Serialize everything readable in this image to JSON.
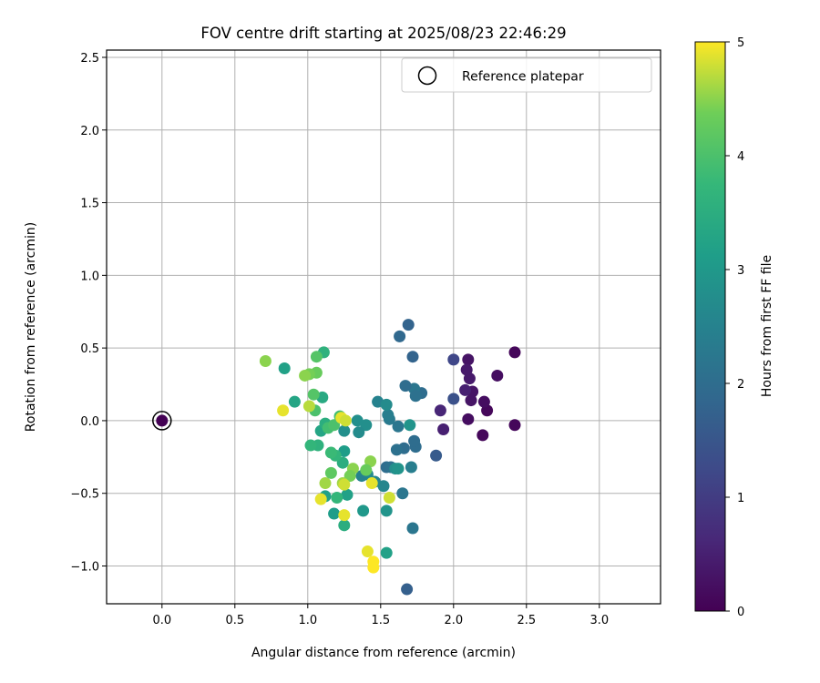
{
  "chart_data": {
    "type": "scatter",
    "title": "FOV centre drift starting at 2025/08/23 22:46:29",
    "xlabel": "Angular distance from reference (arcmin)",
    "ylabel": "Rotation from reference (arcmin)",
    "xlim": [
      -0.38,
      3.42
    ],
    "ylim": [
      -1.26,
      2.55
    ],
    "xticks": [
      0.0,
      0.5,
      1.0,
      1.5,
      2.0,
      2.5,
      3.0
    ],
    "xtick_labels": [
      "0.0",
      "0.5",
      "1.0",
      "1.5",
      "2.0",
      "2.5",
      "3.0"
    ],
    "yticks": [
      -1.0,
      -0.5,
      0.0,
      0.5,
      1.0,
      1.5,
      2.0,
      2.5
    ],
    "ytick_labels": [
      "−1.0",
      "−0.5",
      "0.0",
      "0.5",
      "1.0",
      "1.5",
      "2.0",
      "2.5"
    ],
    "grid": true,
    "legend_position": "top-right",
    "legend": [
      {
        "label": "Reference platepar",
        "marker": "open-circle"
      }
    ],
    "reference_point": {
      "x": 0.0,
      "y": 0.0,
      "hours": 0.0
    },
    "colorbar": {
      "label": "Hours from first FF file",
      "colormap": "viridis",
      "range": [
        0,
        5
      ],
      "ticks": [
        0,
        1,
        2,
        3,
        4,
        5
      ],
      "tick_labels": [
        "0",
        "1",
        "2",
        "3",
        "4",
        "5"
      ]
    },
    "points": [
      {
        "x": 2.42,
        "y": 0.47,
        "hours": 0.1
      },
      {
        "x": 2.42,
        "y": -0.03,
        "hours": 0.1
      },
      {
        "x": 2.3,
        "y": 0.31,
        "hours": 0.2
      },
      {
        "x": 2.23,
        "y": 0.07,
        "hours": 0.1
      },
      {
        "x": 2.21,
        "y": 0.13,
        "hours": 0.2
      },
      {
        "x": 2.2,
        "y": -0.1,
        "hours": 0.1
      },
      {
        "x": 2.13,
        "y": 0.2,
        "hours": 0.3
      },
      {
        "x": 2.12,
        "y": 0.14,
        "hours": 0.3
      },
      {
        "x": 2.11,
        "y": 0.29,
        "hours": 0.4
      },
      {
        "x": 2.1,
        "y": 0.42,
        "hours": 0.3
      },
      {
        "x": 2.1,
        "y": 0.01,
        "hours": 0.2
      },
      {
        "x": 2.09,
        "y": 0.35,
        "hours": 0.4
      },
      {
        "x": 2.08,
        "y": 0.21,
        "hours": 0.5
      },
      {
        "x": 1.93,
        "y": -0.06,
        "hours": 0.5
      },
      {
        "x": 1.91,
        "y": 0.07,
        "hours": 0.6
      },
      {
        "x": 2.0,
        "y": 0.42,
        "hours": 1.2
      },
      {
        "x": 2.0,
        "y": 0.15,
        "hours": 1.4
      },
      {
        "x": 1.88,
        "y": -0.24,
        "hours": 1.6
      },
      {
        "x": 1.69,
        "y": 0.66,
        "hours": 1.8
      },
      {
        "x": 1.63,
        "y": 0.58,
        "hours": 1.9
      },
      {
        "x": 1.72,
        "y": 0.44,
        "hours": 1.8
      },
      {
        "x": 1.78,
        "y": 0.19,
        "hours": 2.0
      },
      {
        "x": 1.73,
        "y": 0.22,
        "hours": 2.2
      },
      {
        "x": 1.74,
        "y": 0.17,
        "hours": 2.1
      },
      {
        "x": 1.67,
        "y": 0.24,
        "hours": 2.0
      },
      {
        "x": 1.74,
        "y": -0.18,
        "hours": 2.0
      },
      {
        "x": 1.73,
        "y": -0.14,
        "hours": 2.0
      },
      {
        "x": 1.66,
        "y": -0.19,
        "hours": 2.0
      },
      {
        "x": 1.61,
        "y": -0.2,
        "hours": 2.1
      },
      {
        "x": 1.62,
        "y": -0.04,
        "hours": 2.2
      },
      {
        "x": 1.56,
        "y": 0.01,
        "hours": 2.3
      },
      {
        "x": 1.55,
        "y": 0.04,
        "hours": 2.4
      },
      {
        "x": 1.48,
        "y": 0.13,
        "hours": 2.5
      },
      {
        "x": 1.54,
        "y": 0.11,
        "hours": 2.7
      },
      {
        "x": 1.54,
        "y": -0.32,
        "hours": 2.0
      },
      {
        "x": 1.57,
        "y": -0.32,
        "hours": 2.1
      },
      {
        "x": 1.71,
        "y": -0.32,
        "hours": 2.4
      },
      {
        "x": 1.65,
        "y": -0.5,
        "hours": 2.2
      },
      {
        "x": 1.72,
        "y": -0.74,
        "hours": 2.2
      },
      {
        "x": 1.68,
        "y": -1.16,
        "hours": 1.7
      },
      {
        "x": 1.7,
        "y": -0.03,
        "hours": 2.9
      },
      {
        "x": 1.6,
        "y": -0.33,
        "hours": 2.8
      },
      {
        "x": 1.62,
        "y": -0.33,
        "hours": 2.9
      },
      {
        "x": 1.52,
        "y": -0.45,
        "hours": 2.6
      },
      {
        "x": 1.46,
        "y": -0.42,
        "hours": 2.6
      },
      {
        "x": 1.41,
        "y": -0.37,
        "hours": 2.7
      },
      {
        "x": 1.37,
        "y": -0.38,
        "hours": 2.5
      },
      {
        "x": 1.4,
        "y": -0.03,
        "hours": 2.8
      },
      {
        "x": 1.34,
        "y": 0.0,
        "hours": 2.8
      },
      {
        "x": 1.35,
        "y": -0.08,
        "hours": 2.7
      },
      {
        "x": 1.25,
        "y": -0.07,
        "hours": 2.8
      },
      {
        "x": 1.25,
        "y": -0.21,
        "hours": 3.1
      },
      {
        "x": 1.27,
        "y": -0.51,
        "hours": 3.2
      },
      {
        "x": 1.18,
        "y": -0.64,
        "hours": 3.1
      },
      {
        "x": 1.38,
        "y": -0.62,
        "hours": 3.0
      },
      {
        "x": 1.54,
        "y": -0.62,
        "hours": 2.9
      },
      {
        "x": 1.54,
        "y": -0.91,
        "hours": 3.2
      },
      {
        "x": 1.25,
        "y": -0.72,
        "hours": 3.5
      },
      {
        "x": 0.84,
        "y": 0.36,
        "hours": 3.2
      },
      {
        "x": 0.91,
        "y": 0.13,
        "hours": 3.3
      },
      {
        "x": 1.11,
        "y": 0.47,
        "hours": 3.6
      },
      {
        "x": 1.12,
        "y": -0.52,
        "hours": 3.2
      },
      {
        "x": 1.2,
        "y": -0.53,
        "hours": 3.7
      },
      {
        "x": 1.24,
        "y": -0.29,
        "hours": 3.5
      },
      {
        "x": 1.19,
        "y": -0.24,
        "hours": 3.7
      },
      {
        "x": 1.16,
        "y": -0.22,
        "hours": 3.8
      },
      {
        "x": 1.09,
        "y": -0.07,
        "hours": 3.3
      },
      {
        "x": 1.1,
        "y": 0.16,
        "hours": 3.4
      },
      {
        "x": 1.07,
        "y": -0.17,
        "hours": 3.6
      },
      {
        "x": 1.02,
        "y": -0.17,
        "hours": 3.7
      },
      {
        "x": 1.12,
        "y": -0.02,
        "hours": 3.5
      },
      {
        "x": 1.14,
        "y": -0.05,
        "hours": 3.9
      },
      {
        "x": 1.18,
        "y": -0.03,
        "hours": 4.0
      },
      {
        "x": 1.22,
        "y": 0.03,
        "hours": 3.9
      },
      {
        "x": 1.05,
        "y": 0.07,
        "hours": 4.0
      },
      {
        "x": 1.04,
        "y": 0.18,
        "hours": 4.1
      },
      {
        "x": 1.06,
        "y": 0.33,
        "hours": 4.3
      },
      {
        "x": 1.06,
        "y": 0.44,
        "hours": 4.1
      },
      {
        "x": 1.01,
        "y": 0.32,
        "hours": 4.4
      },
      {
        "x": 0.98,
        "y": 0.31,
        "hours": 4.5
      },
      {
        "x": 0.71,
        "y": 0.41,
        "hours": 4.5
      },
      {
        "x": 1.31,
        "y": -0.33,
        "hours": 4.5
      },
      {
        "x": 1.29,
        "y": -0.38,
        "hours": 4.4
      },
      {
        "x": 1.24,
        "y": -0.43,
        "hours": 4.6
      },
      {
        "x": 1.43,
        "y": -0.28,
        "hours": 4.5
      },
      {
        "x": 1.4,
        "y": -0.34,
        "hours": 4.3
      },
      {
        "x": 1.12,
        "y": -0.43,
        "hours": 4.6
      },
      {
        "x": 1.16,
        "y": -0.36,
        "hours": 4.2
      },
      {
        "x": 1.56,
        "y": -0.53,
        "hours": 4.8
      },
      {
        "x": 1.09,
        "y": -0.54,
        "hours": 4.9
      },
      {
        "x": 1.25,
        "y": -0.65,
        "hours": 4.9
      },
      {
        "x": 1.25,
        "y": -0.44,
        "hours": 4.8
      },
      {
        "x": 1.44,
        "y": -0.43,
        "hours": 4.9
      },
      {
        "x": 0.83,
        "y": 0.07,
        "hours": 4.9
      },
      {
        "x": 1.01,
        "y": 0.1,
        "hours": 4.7
      },
      {
        "x": 1.23,
        "y": 0.02,
        "hours": 4.9
      },
      {
        "x": 1.26,
        "y": 0.0,
        "hours": 4.8
      },
      {
        "x": 1.41,
        "y": -0.9,
        "hours": 4.9
      },
      {
        "x": 1.45,
        "y": -0.97,
        "hours": 5.0
      },
      {
        "x": 1.45,
        "y": -1.01,
        "hours": 5.0
      }
    ]
  }
}
